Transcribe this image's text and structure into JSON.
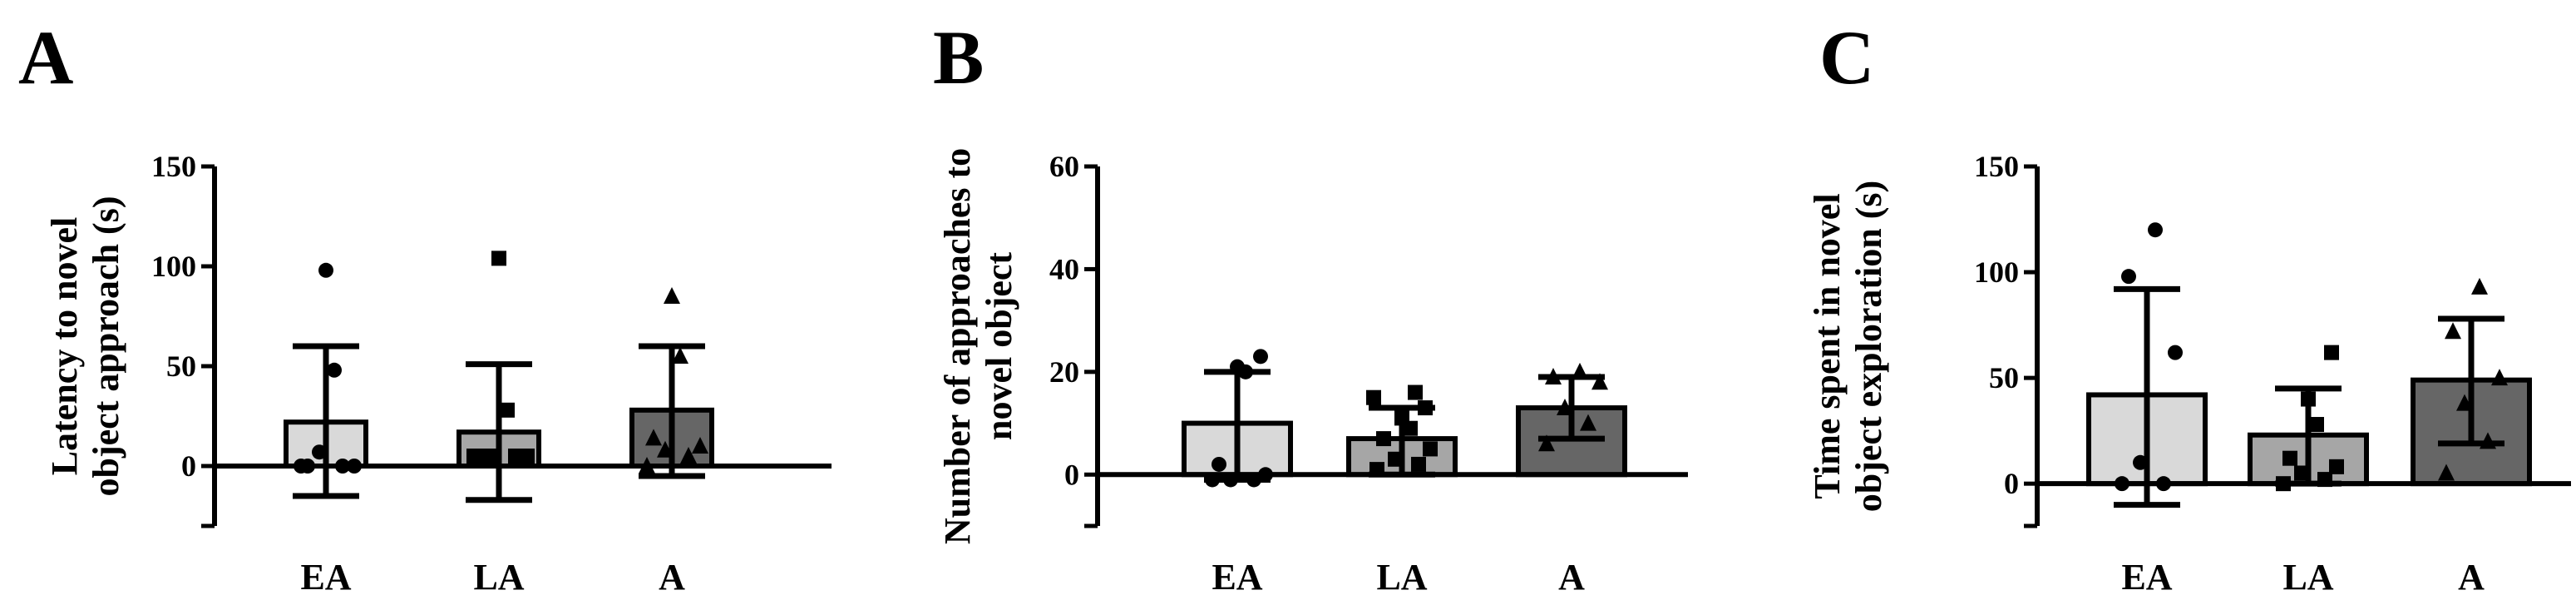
{
  "colors": {
    "EA": "#d9d9d9",
    "LA": "#a6a6a6",
    "A": "#666666",
    "ink": "#000000"
  },
  "chart_data": [
    {
      "type": "bar",
      "panel_label": "A",
      "ylabel_lines": [
        "Latency to novel",
        "object approach (s)"
      ],
      "categories": [
        "EA",
        "LA",
        "A"
      ],
      "values": [
        22,
        17,
        28
      ],
      "error_upper": [
        60,
        51,
        60
      ],
      "error_lower": [
        -15,
        -17,
        -5
      ],
      "markers": [
        "circle",
        "square",
        "triangle"
      ],
      "points": [
        [
          0,
          0,
          7,
          0,
          0,
          48,
          98
        ],
        [
          5,
          5,
          5,
          5,
          5,
          28,
          104
        ],
        [
          0,
          5,
          8,
          10,
          14,
          55,
          85
        ]
      ],
      "yticks": [
        0,
        50,
        100,
        150
      ],
      "ylim": [
        -30,
        150
      ],
      "grid": false
    },
    {
      "type": "bar",
      "panel_label": "B",
      "ylabel_lines": [
        "Number of approaches to",
        "novel object"
      ],
      "categories": [
        "EA",
        "LA",
        "A"
      ],
      "values": [
        10,
        7,
        13
      ],
      "error_upper": [
        20,
        13,
        19
      ],
      "error_lower": [
        -1,
        0,
        7
      ],
      "markers": [
        "circle",
        "square",
        "triangle"
      ],
      "points": [
        [
          -1,
          -1,
          -1,
          0,
          2,
          20,
          21,
          23
        ],
        [
          1,
          2,
          3,
          5,
          7,
          9,
          11,
          13,
          15,
          16
        ],
        [
          6,
          10,
          13,
          18,
          19,
          20
        ]
      ],
      "yticks": [
        0,
        20,
        40,
        60
      ],
      "ylim": [
        -10,
        60
      ],
      "grid": false
    },
    {
      "type": "bar",
      "panel_label": "C",
      "ylabel_lines": [
        "Time spent in novel",
        "object exploration (s)"
      ],
      "categories": [
        "EA",
        "LA",
        "A"
      ],
      "values": [
        42,
        23,
        49
      ],
      "error_upper": [
        92,
        45,
        78
      ],
      "error_lower": [
        -10,
        0,
        19
      ],
      "markers": [
        "circle",
        "square",
        "triangle"
      ],
      "points": [
        [
          0,
          0,
          10,
          62,
          98,
          120
        ],
        [
          0,
          2,
          5,
          8,
          12,
          28,
          40,
          62
        ],
        [
          5,
          20,
          38,
          50,
          72,
          93
        ]
      ],
      "yticks": [
        0,
        50,
        100,
        150
      ],
      "ylim": [
        -20,
        150
      ],
      "grid": false
    }
  ]
}
